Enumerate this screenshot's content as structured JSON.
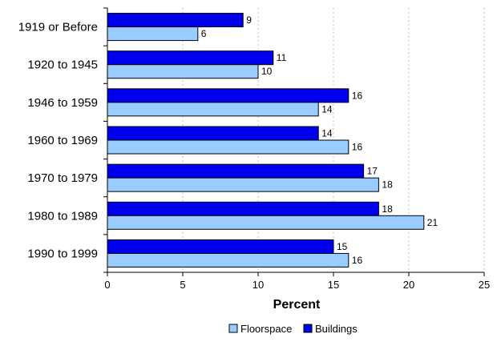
{
  "chart_data": {
    "type": "bar",
    "orientation": "horizontal",
    "categories": [
      "1919 or Before",
      "1920 to 1945",
      "1946 to 1959",
      "1960 to 1969",
      "1970 to 1979",
      "1980 to 1989",
      "1990 to 1999"
    ],
    "series": [
      {
        "name": "Buildings",
        "color": "#0000ee",
        "values": [
          9,
          11,
          16,
          14,
          17,
          18,
          15
        ]
      },
      {
        "name": "Floorspace",
        "color": "#99ccff",
        "values": [
          6,
          10,
          14,
          16,
          18,
          21,
          16
        ]
      }
    ],
    "xlabel": "Percent",
    "xlim": [
      0,
      25
    ],
    "xticks": [
      "0",
      "5",
      "10",
      "15",
      "20",
      "25"
    ],
    "grid": true,
    "legend": {
      "position": "bottom",
      "order": [
        "Floorspace",
        "Buildings"
      ]
    }
  }
}
